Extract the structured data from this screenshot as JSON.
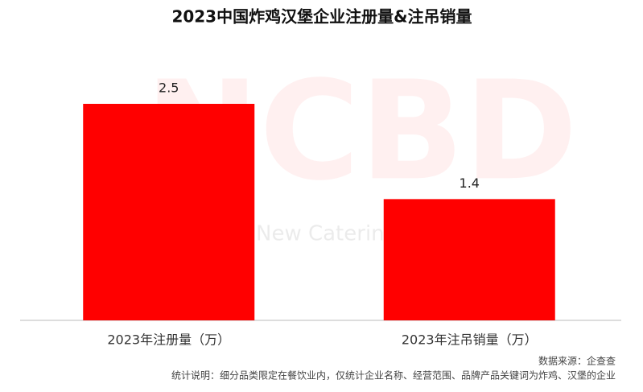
{
  "chart_data": {
    "type": "bar",
    "title": "2023中国炸鸡汉堡企业注册量&注吊销量",
    "categories": [
      "2023年注册量（万）",
      "2023年注吊销量（万）"
    ],
    "values": [
      2.5,
      1.4
    ],
    "color": "#ff0000",
    "watermark": "NCBD",
    "watermark_subtitle": "New Catering",
    "source": "数据来源：企查查",
    "note": "统计说明：细分品类限定在餐饮业内，仅统计企业名称、经营范围、品牌产品关键词为炸鸡、汉堡的企业"
  }
}
